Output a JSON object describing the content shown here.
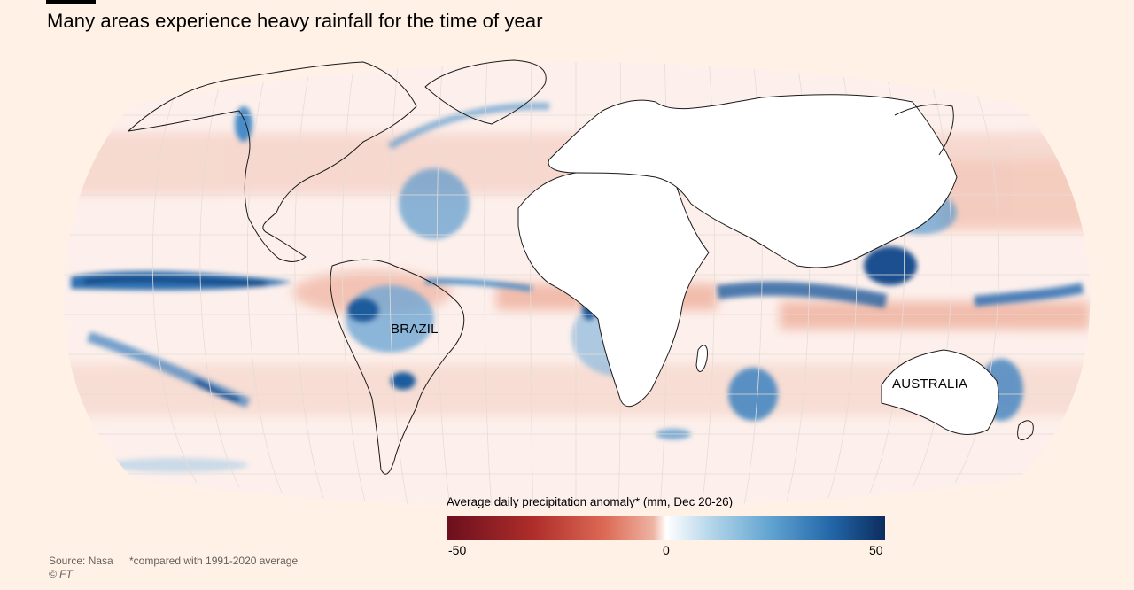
{
  "header": {
    "title": "Many areas experience heavy rainfall for the time of year"
  },
  "map": {
    "projection": "Robinson",
    "labels": {
      "brazil": "BRAZIL",
      "australia": "AUSTRALIA"
    }
  },
  "legend": {
    "title": "Average daily precipitation anomaly* (mm, Dec 20-26)",
    "ticks": [
      "-50",
      "0",
      "50"
    ],
    "range": [
      -50,
      50
    ],
    "colors": {
      "dry_extreme": "#6b0f1d",
      "dry": "#dc6a55",
      "neutral": "#ffffff",
      "wet": "#5fa3d1",
      "wet_extreme": "#0b2c5e"
    }
  },
  "footer": {
    "source": "Source: Nasa",
    "footnote": "*compared with 1991-2020 average",
    "copyright": "© FT"
  }
}
